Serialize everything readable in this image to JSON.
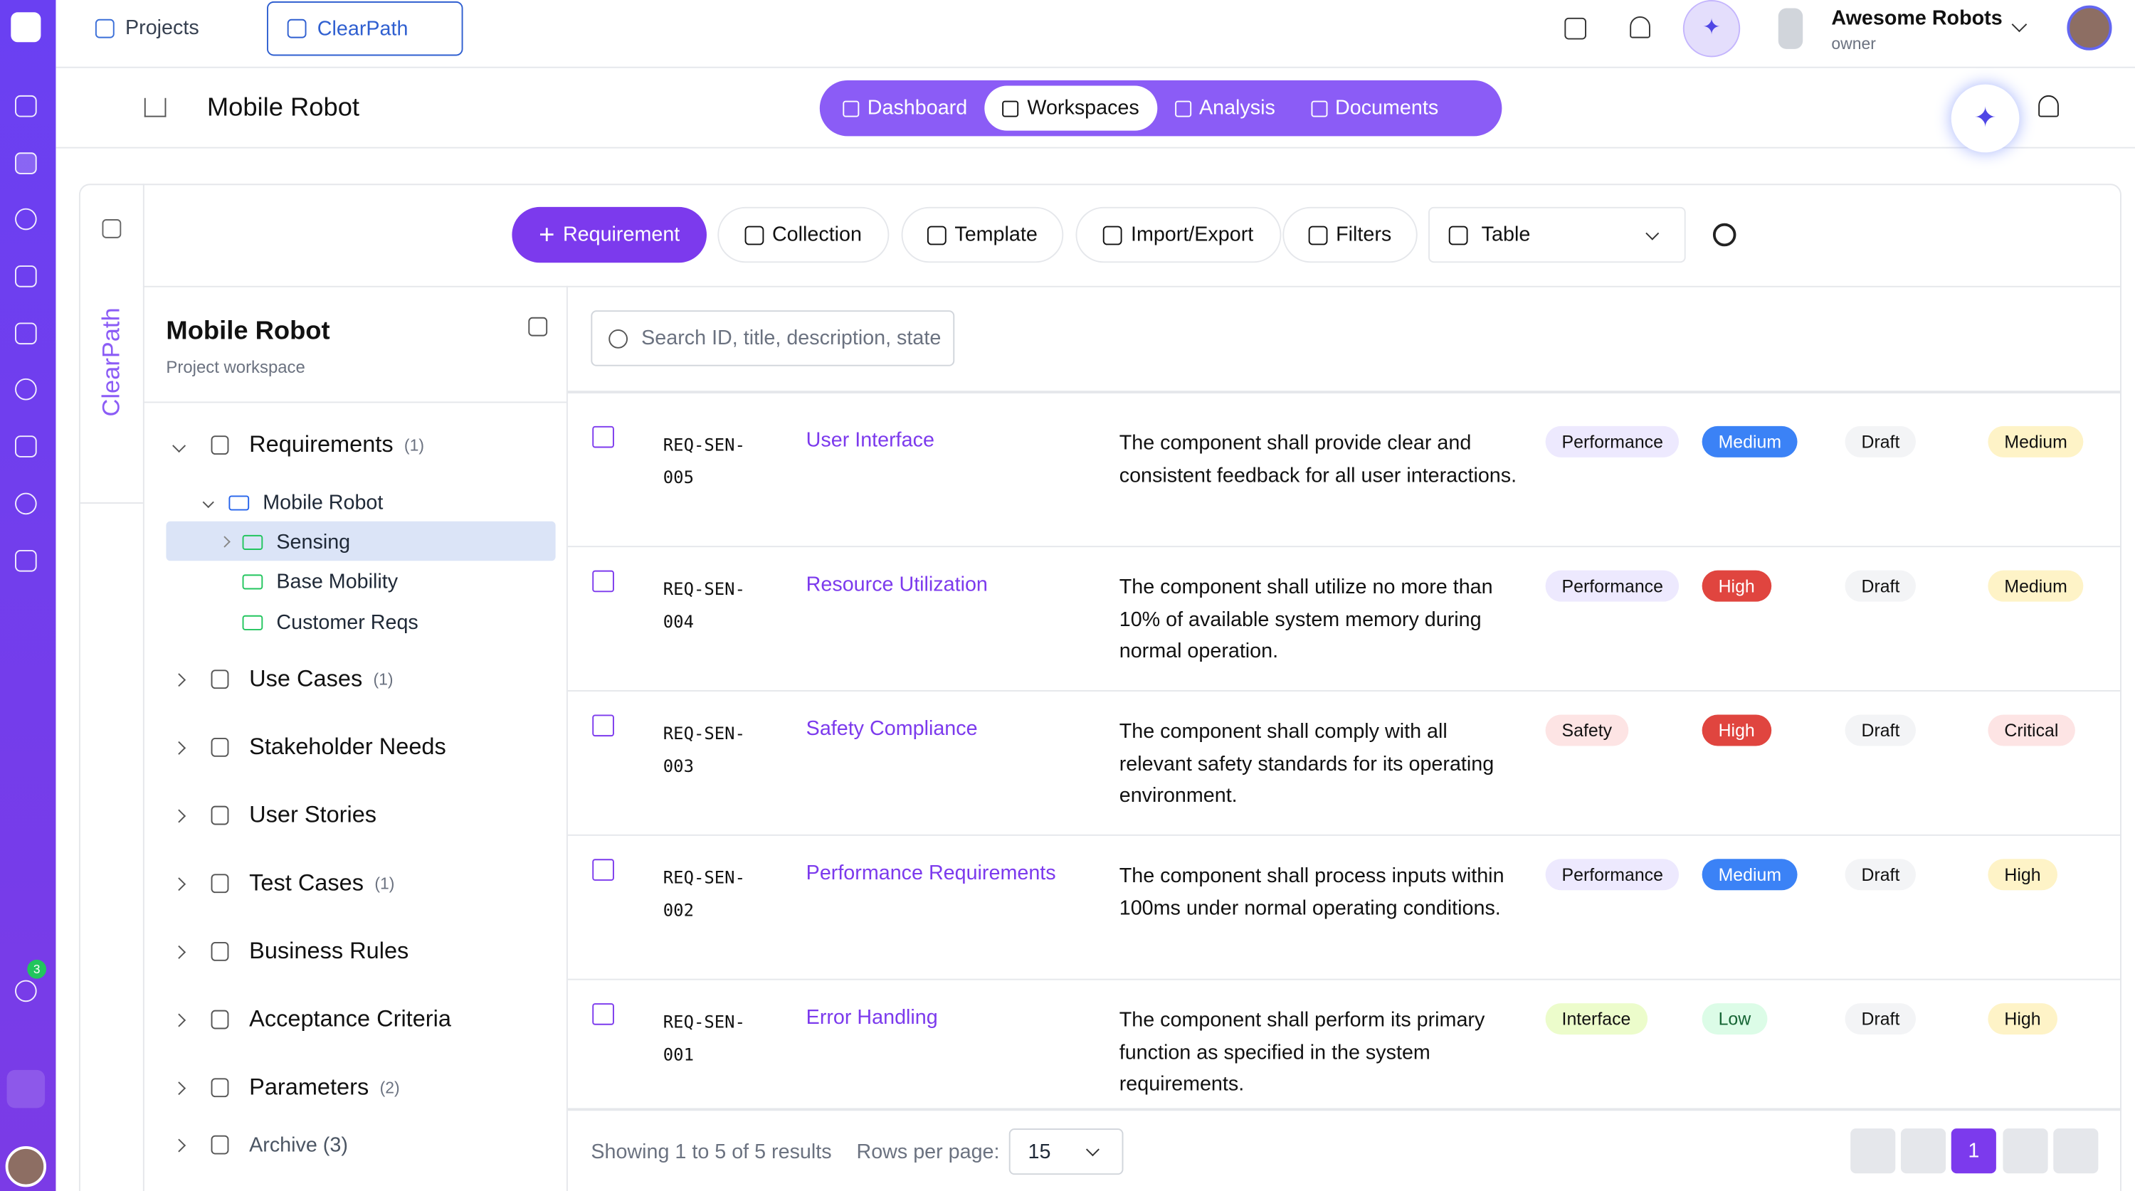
{
  "top_tabs": [
    "Projects",
    "ClearPath"
  ],
  "user": {
    "name": "Awesome Robots",
    "role": "owner"
  },
  "rail_badge": "3",
  "header": {
    "title": "Mobile Robot",
    "nav": [
      "Dashboard",
      "Workspaces",
      "Analysis",
      "Documents"
    ],
    "active_nav": 1
  },
  "toolbar": {
    "buttons": [
      "Requirement",
      "Collection",
      "Template",
      "Import/Export",
      "Filters"
    ],
    "view": "Table"
  },
  "side_label": "ClearPath",
  "sidebar": {
    "title": "Mobile Robot",
    "subtitle": "Project workspace",
    "tree": [
      {
        "label": "Requirements",
        "count": "(1)",
        "children": [
          {
            "label": "Mobile Robot",
            "children": [
              {
                "label": "Sensing",
                "selected": true
              },
              {
                "label": "Base Mobility"
              },
              {
                "label": "Customer Reqs"
              }
            ]
          }
        ]
      },
      {
        "label": "Use Cases",
        "count": "(1)"
      },
      {
        "label": "Stakeholder Needs"
      },
      {
        "label": "User Stories"
      },
      {
        "label": "Test Cases",
        "count": "(1)"
      },
      {
        "label": "Business Rules"
      },
      {
        "label": "Acceptance Criteria"
      },
      {
        "label": "Parameters",
        "count": "(2)"
      },
      {
        "label": "Archive (3)"
      }
    ]
  },
  "search_placeholder": "Search ID, title, description, state",
  "table": {
    "rows": [
      {
        "id": "REQ-SEN-005",
        "title": "User Interface",
        "description": "The component shall provide clear and consistent feedback for all user interactions.",
        "category": "Performance",
        "priority": "Medium",
        "status": "Draft",
        "severity": "Medium"
      },
      {
        "id": "REQ-SEN-004",
        "title": "Resource Utilization",
        "description": "The component shall utilize no more than 10% of available system memory during normal operation.",
        "category": "Performance",
        "priority": "High",
        "status": "Draft",
        "severity": "Medium"
      },
      {
        "id": "REQ-SEN-003",
        "title": "Safety Compliance",
        "description": "The component shall comply with all relevant safety standards for its operating environment.",
        "category": "Safety",
        "priority": "High",
        "status": "Draft",
        "severity": "Critical"
      },
      {
        "id": "REQ-SEN-002",
        "title": "Performance Requirements",
        "description": "The component shall process inputs within 100ms under normal operating conditions.",
        "category": "Performance",
        "priority": "Medium",
        "status": "Draft",
        "severity": "High"
      },
      {
        "id": "REQ-SEN-001",
        "title": "Error Handling",
        "description": "The component shall perform its primary function as specified in the system requirements.",
        "category": "Interface",
        "priority": "Low",
        "status": "Draft",
        "severity": "High"
      }
    ]
  },
  "footer": {
    "summary": "Showing 1 to 5 of 5 results",
    "rows_label": "Rows per page:",
    "rows_value": "15",
    "page": "1"
  }
}
